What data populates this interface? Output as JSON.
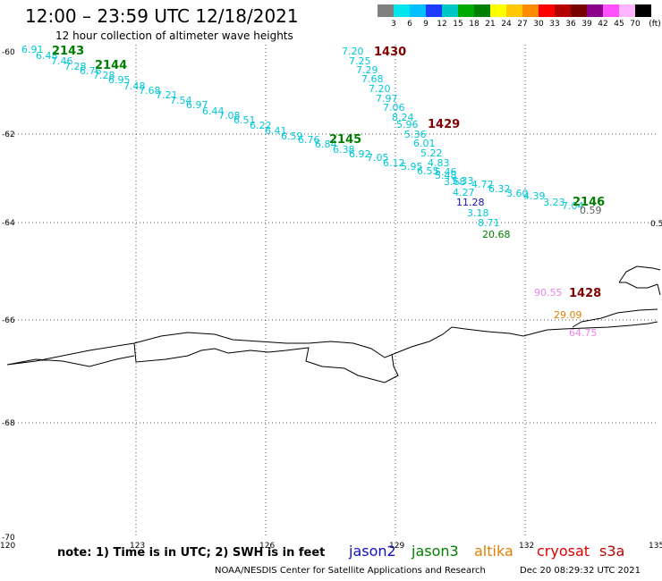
{
  "header": {
    "title": "12:00 – 23:59 UTC 12/18/2021",
    "subtitle": "12 hour collection of altimeter wave heights"
  },
  "colorbar": {
    "labels": [
      "3",
      "6",
      "9",
      "12",
      "15",
      "18",
      "21",
      "24",
      "27",
      "30",
      "33",
      "36",
      "39",
      "42",
      "45",
      "70"
    ],
    "unit": "(ft)",
    "colors": [
      "#808080",
      "#00e5ee",
      "#00bfff",
      "#1e3cff",
      "#00c8c8",
      "#00aa00",
      "#008000",
      "#ffff00",
      "#ffc800",
      "#ff8c00",
      "#ff0000",
      "#b40000",
      "#780000",
      "#8b008b",
      "#ff50ff",
      "#ffb4ff",
      "#000000"
    ]
  },
  "map": {
    "lon_ticks": [
      "120",
      "123",
      "126",
      "129",
      "132",
      "135"
    ],
    "lat_ticks": [
      "-60",
      "-62",
      "-64",
      "-66",
      "-68",
      "-70"
    ],
    "right_edge_label": "0.5"
  },
  "colors": {
    "jason3": "#008000",
    "swh": "#00c8d8",
    "pass_dark": "#800000",
    "jason2": "#1010c0",
    "altika": "#e08000",
    "cryosat": "#e00000",
    "s3a": "#c00000",
    "pink": "#ee82ee"
  },
  "passes": [
    {
      "text": "2143",
      "color": "#008000"
    },
    {
      "text": "2144",
      "color": "#008000"
    },
    {
      "text": "1430",
      "color": "#800000"
    },
    {
      "text": "1429",
      "color": "#800000"
    },
    {
      "text": "2145",
      "color": "#008000"
    },
    {
      "text": "2146",
      "color": "#008000"
    },
    {
      "text": "1428",
      "color": "#800000"
    }
  ],
  "track_a_values": [
    "6.91",
    "6.48",
    "7.46",
    "7.28",
    "6.76",
    "7.28",
    "6.95",
    "7.48",
    "7.68",
    "7.21",
    "7.54",
    "6.97",
    "6.44",
    "7.08",
    "6.51",
    "6.22",
    "6.41",
    "6.59",
    "6.76",
    "6.84",
    "6.38",
    "6.92",
    "7.05",
    "6.12",
    "5.95",
    "6.55",
    "5.48",
    "5.33",
    "4.72",
    "6.32",
    "3.60",
    "4.39",
    "3.23",
    "7.04"
  ],
  "track_b_values": [
    "7.20",
    "7.25",
    "7.29",
    "7.68",
    "7.20",
    "7.97",
    "7.06",
    "8.24",
    "5.96",
    "5.36",
    "6.01",
    "5.22",
    "4.83",
    "5.46",
    "3.68",
    "4.27",
    "3.18",
    "8.71"
  ],
  "other_values": [
    {
      "text": "11.28",
      "color": "#1010c0"
    },
    {
      "text": "20.68",
      "color": "#008000"
    },
    {
      "text": "0.59",
      "color": "#606060"
    },
    {
      "text": "90.55",
      "color": "#ee82ee"
    },
    {
      "text": "29.09",
      "color": "#e08000"
    },
    {
      "text": "64.75",
      "color": "#ee82ee"
    }
  ],
  "footer": {
    "note": "note:  1) Time is in UTC;  2) SWH is in feet",
    "satellites": [
      {
        "name": "jason2",
        "color": "#1010c0"
      },
      {
        "name": "jason3",
        "color": "#008000"
      },
      {
        "name": "altika",
        "color": "#e08000"
      },
      {
        "name": "cryosat",
        "color": "#e00000"
      },
      {
        "name": "s3a",
        "color": "#c00000"
      }
    ],
    "credit": "NOAA/NESDIS Center for Satellite Applications and Research",
    "timestamp": "Dec 20 08:29:32 UTC 2021"
  }
}
